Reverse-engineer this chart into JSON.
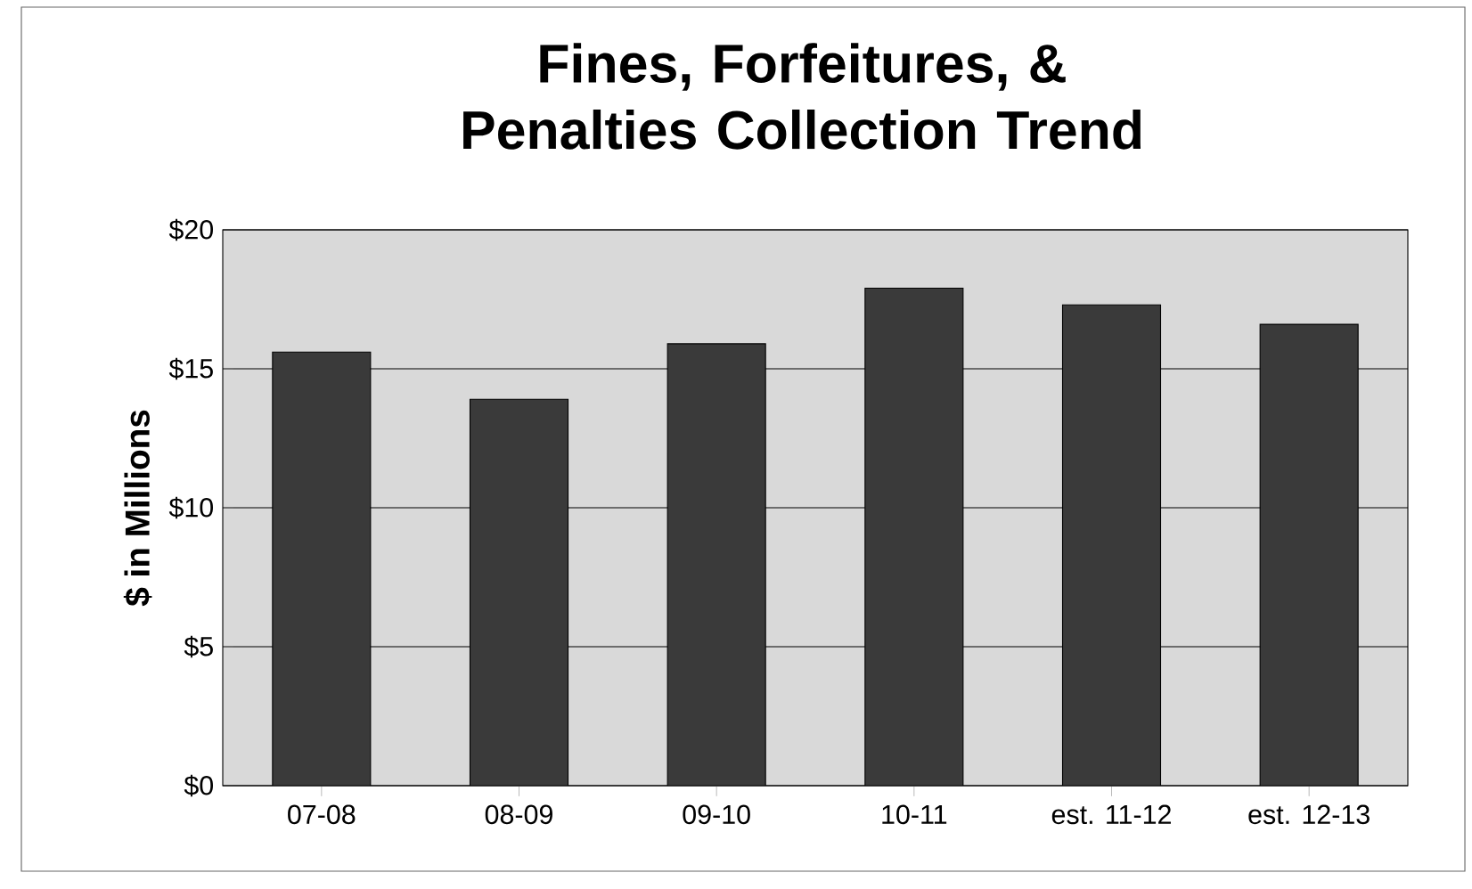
{
  "chart_data": {
    "type": "bar",
    "title": "Fines, Forfeitures, & Penalties Collection Trend",
    "ylabel": "$ in Millions",
    "categories": [
      "07-08",
      "08-09",
      "09-10",
      "10-11",
      "est. 11-12",
      "est. 12-13"
    ],
    "values": [
      15.6,
      13.9,
      15.9,
      17.9,
      17.3,
      16.6
    ],
    "color": "#3a3a3a",
    "ylim": [
      0,
      20
    ],
    "yticks": [
      {
        "value": 0,
        "label": "$0"
      },
      {
        "value": 5,
        "label": "$5"
      },
      {
        "value": 10,
        "label": "$10"
      },
      {
        "value": 15,
        "label": "$15"
      },
      {
        "value": 20,
        "label": "$20"
      }
    ],
    "grid": "y"
  }
}
